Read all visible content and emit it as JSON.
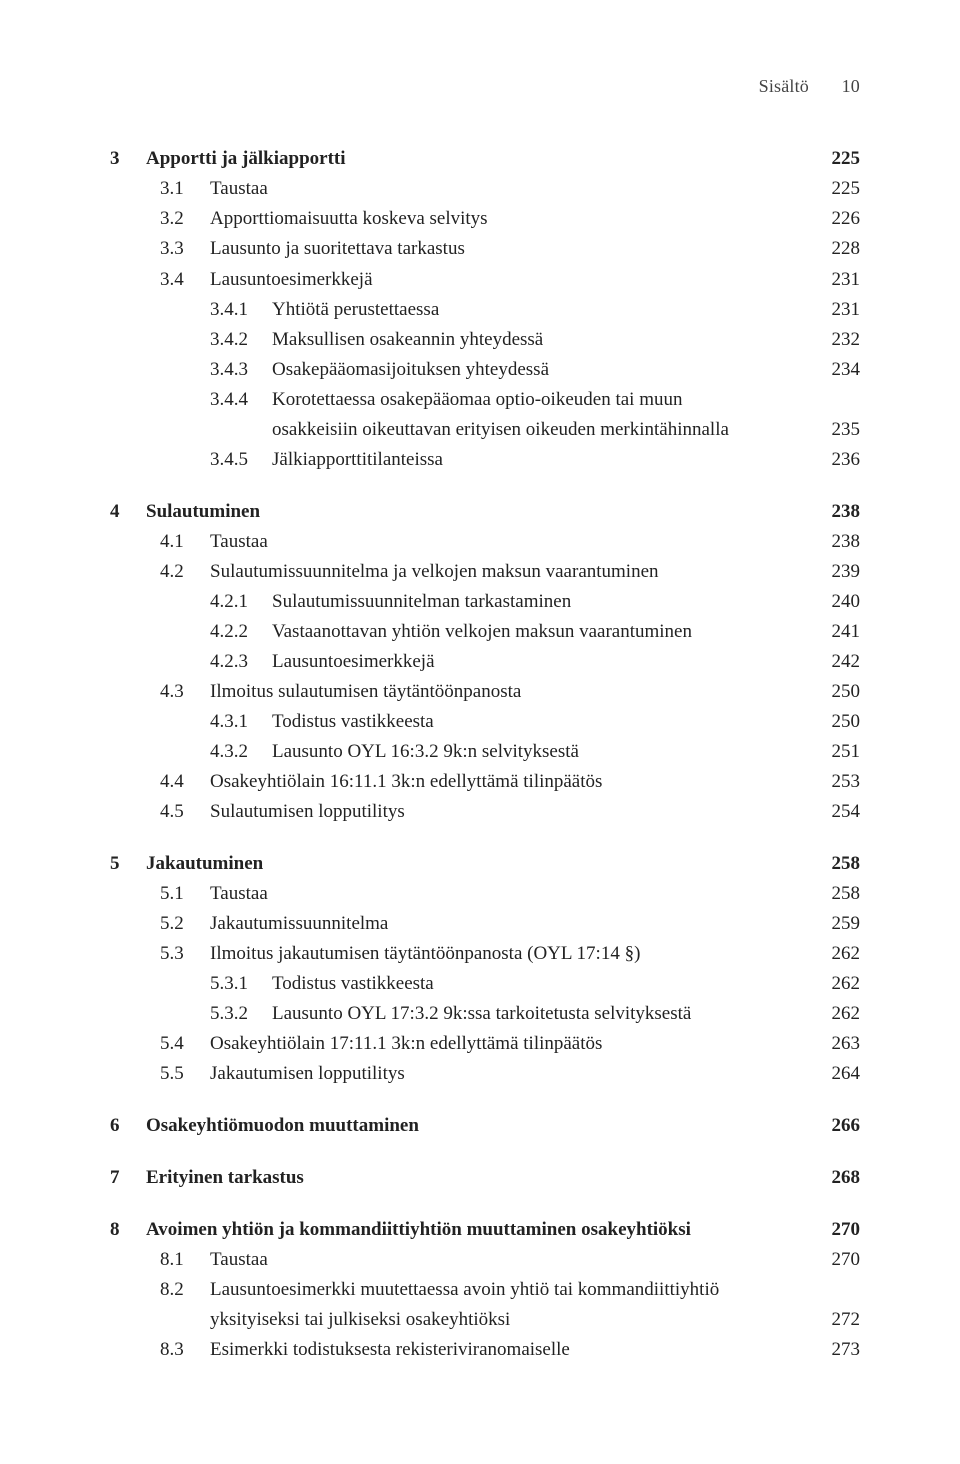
{
  "header": {
    "label": "Sisältö",
    "page": "10"
  },
  "toc": [
    {
      "type": "h1",
      "num": "3",
      "txt": "Apportti ja jälkiapportti",
      "pg": "225"
    },
    {
      "type": "h2",
      "num": "3.1",
      "txt": "Taustaa",
      "pg": "225"
    },
    {
      "type": "h2",
      "num": "3.2",
      "txt": "Apporttiomaisuutta koskeva selvitys",
      "pg": "226"
    },
    {
      "type": "h2",
      "num": "3.3",
      "txt": "Lausunto ja suoritettava tarkastus",
      "pg": "228"
    },
    {
      "type": "h2",
      "num": "3.4",
      "txt": "Lausuntoesimerkkejä",
      "pg": "231"
    },
    {
      "type": "h3",
      "num": "3.4.1",
      "txt": "Yhtiötä perustettaessa",
      "pg": "231"
    },
    {
      "type": "h3",
      "num": "3.4.2",
      "txt": "Maksullisen osakeannin yhteydessä",
      "pg": "232"
    },
    {
      "type": "h3",
      "num": "3.4.3",
      "txt": "Osakepääomasijoituksen yhteydessä",
      "pg": "234"
    },
    {
      "type": "h3wrap",
      "num": "3.4.4",
      "txt1": "Korotettaessa osakepääomaa optio-oikeuden tai muun",
      "txt2": "osakkeisiin oikeuttavan erityisen oikeuden merkintähinnalla",
      "pg": "235"
    },
    {
      "type": "h3",
      "num": "3.4.5",
      "txt": "Jälkiapporttitilanteissa",
      "pg": "236"
    },
    {
      "type": "spacer"
    },
    {
      "type": "h1",
      "num": "4",
      "txt": "Sulautuminen",
      "pg": "238"
    },
    {
      "type": "h2",
      "num": "4.1",
      "txt": "Taustaa",
      "pg": "238"
    },
    {
      "type": "h2",
      "num": "4.2",
      "txt": "Sulautumissuunnitelma ja velkojen maksun vaarantuminen",
      "pg": "239"
    },
    {
      "type": "h3",
      "num": "4.2.1",
      "txt": "Sulautumissuunnitelman tarkastaminen",
      "pg": "240"
    },
    {
      "type": "h3",
      "num": "4.2.2",
      "txt": "Vastaanottavan yhtiön velkojen maksun vaarantuminen",
      "pg": "241"
    },
    {
      "type": "h3",
      "num": "4.2.3",
      "txt": "Lausuntoesimerkkejä",
      "pg": "242"
    },
    {
      "type": "h2",
      "num": "4.3",
      "txt": "Ilmoitus sulautumisen täytäntöönpanosta",
      "pg": "250"
    },
    {
      "type": "h3",
      "num": "4.3.1",
      "txt": "Todistus vastikkeesta",
      "pg": "250"
    },
    {
      "type": "h3",
      "num": "4.3.2",
      "txt": "Lausunto OYL 16:3.2 9k:n selvityksestä",
      "pg": "251"
    },
    {
      "type": "h2",
      "num": "4.4",
      "txt": "Osakeyhtiölain 16:11.1 3k:n edellyttämä tilinpäätös",
      "pg": "253"
    },
    {
      "type": "h2",
      "num": "4.5",
      "txt": "Sulautumisen lopputilitys",
      "pg": "254"
    },
    {
      "type": "spacer"
    },
    {
      "type": "h1",
      "num": "5",
      "txt": "Jakautuminen",
      "pg": "258"
    },
    {
      "type": "h2",
      "num": "5.1",
      "txt": "Taustaa",
      "pg": "258"
    },
    {
      "type": "h2",
      "num": "5.2",
      "txt": "Jakautumissuunnitelma",
      "pg": "259"
    },
    {
      "type": "h2",
      "num": "5.3",
      "txt": "Ilmoitus jakautumisen täytäntöönpanosta (OYL 17:14 §)",
      "pg": "262"
    },
    {
      "type": "h3",
      "num": "5.3.1",
      "txt": "Todistus vastikkeesta",
      "pg": "262"
    },
    {
      "type": "h3",
      "num": "5.3.2",
      "txt": "Lausunto OYL 17:3.2 9k:ssa tarkoitetusta selvityksestä",
      "pg": "262"
    },
    {
      "type": "h2",
      "num": "5.4",
      "txt": "Osakeyhtiölain 17:11.1 3k:n edellyttämä tilinpäätös",
      "pg": "263"
    },
    {
      "type": "h2",
      "num": "5.5",
      "txt": "Jakautumisen lopputilitys",
      "pg": "264"
    },
    {
      "type": "spacer"
    },
    {
      "type": "h1",
      "num": "6",
      "txt": "Osakeyhtiömuodon muuttaminen",
      "pg": "266"
    },
    {
      "type": "spacer"
    },
    {
      "type": "h1",
      "num": "7",
      "txt": "Erityinen tarkastus",
      "pg": "268"
    },
    {
      "type": "spacer"
    },
    {
      "type": "h1",
      "num": "8",
      "txt": "Avoimen yhtiön ja kommandiittiyhtiön muuttaminen osakeyhtiöksi",
      "pg": "270"
    },
    {
      "type": "h2",
      "num": "8.1",
      "txt": "Taustaa",
      "pg": "270"
    },
    {
      "type": "h2wrap",
      "num": "8.2",
      "txt1": "Lausuntoesimerkki muutettaessa avoin yhtiö tai kommandiittiyhtiö",
      "txt2": "yksityiseksi tai julkiseksi osakeyhtiöksi",
      "pg": "272"
    },
    {
      "type": "h2",
      "num": "8.3",
      "txt": "Esimerkki todistuksesta rekisteriviranomaiselle",
      "pg": "273"
    }
  ]
}
